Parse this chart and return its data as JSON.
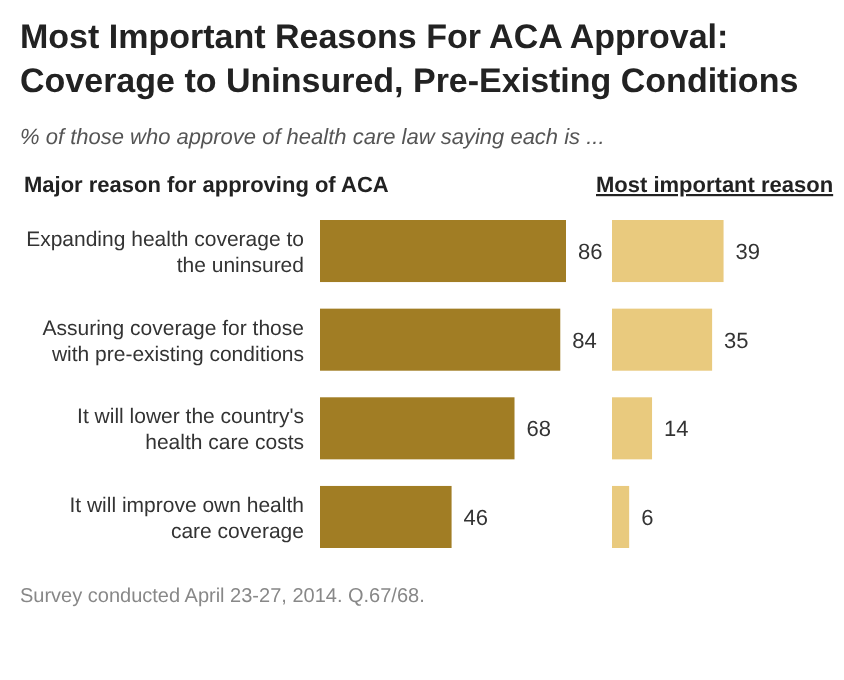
{
  "chart_data": [
    {
      "type": "other",
      "title": "Most Important Reasons For ACA Approval: Coverage to Uninsured, Pre-Existing Conditions",
      "subtitle": "% of those who approve of health care law saying each is ...",
      "annotations": [
        "Survey conducted April 23-27, 2014. Q.67/68."
      ]
    },
    {
      "type": "bar",
      "orientation": "horizontal",
      "title": "Major reason for approving of ACA",
      "categories": [
        "Expanding health coverage to the uninsured",
        "Assuring coverage for those with pre-existing conditions",
        "It will lower the country's health care costs",
        "It will improve own health care coverage"
      ],
      "values": [
        86,
        84,
        68,
        46
      ],
      "color": "#a17d24",
      "data_labels": true
    },
    {
      "type": "bar",
      "orientation": "horizontal",
      "title": "Most important reason",
      "categories": [
        null,
        null,
        null,
        null
      ],
      "values": [
        39,
        35,
        14,
        6
      ],
      "color": "#e9ca7e",
      "data_labels": true
    }
  ]
}
